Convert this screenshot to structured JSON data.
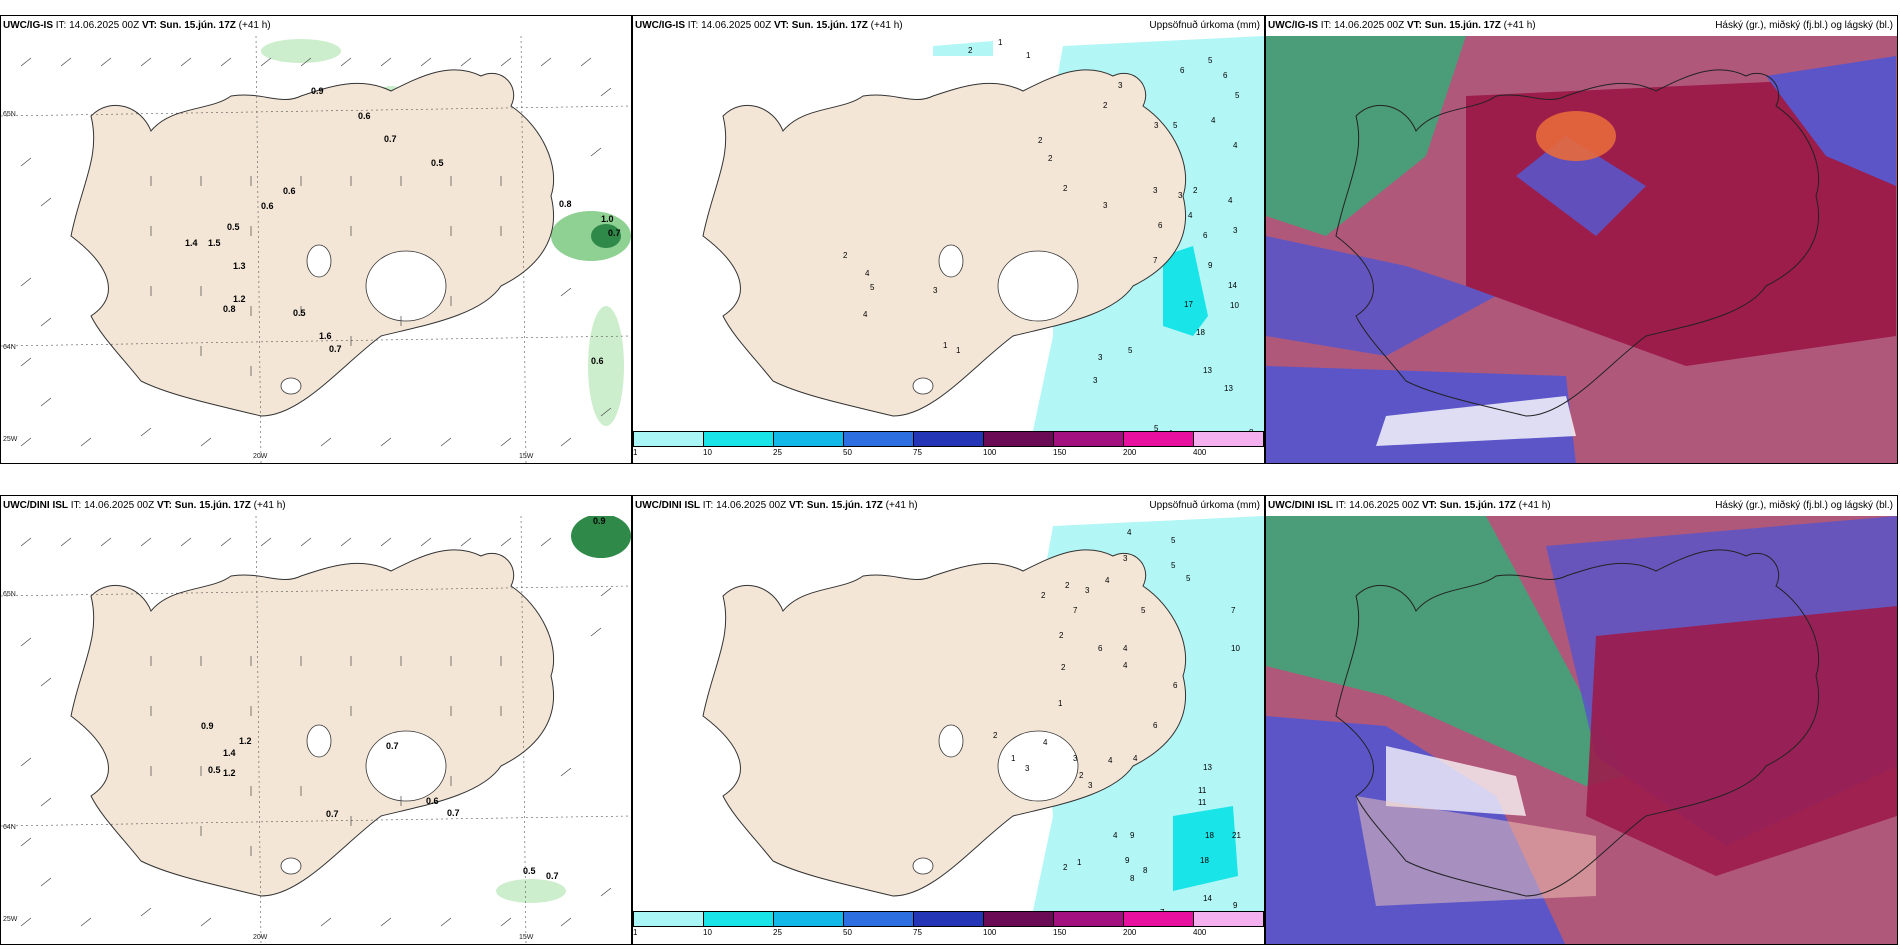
{
  "rows": [
    {
      "model": "UWC/IG-IS",
      "it_label": "IT:",
      "it_value": "14.06.2025 00Z",
      "vt_label": "VT:",
      "vt_value": "Sun. 15.jún. 17Z",
      "lead": "(+41 h)",
      "mid_title": "Uppsöfnuð úrkoma (mm)",
      "right_title": "Háský (gr.), miðský (fj.bl.) og lágský (bl.)",
      "wind_values": [
        "0.9",
        "0.6",
        "0.7",
        "0.5",
        "0.6",
        "0.6",
        "0.5",
        "1.4",
        "1.5",
        "1.3",
        "1.2",
        "0.8",
        "0.5",
        "1.6",
        "0.7",
        "0.8",
        "1.0",
        "0.7",
        "0.6"
      ],
      "precip_values": [
        "2",
        "1",
        "1",
        "3",
        "6",
        "5",
        "6",
        "2",
        "5",
        "4",
        "5",
        "4",
        "3",
        "2",
        "2",
        "2",
        "3",
        "6",
        "4",
        "3",
        "3",
        "2",
        "4",
        "3",
        "6",
        "7",
        "9",
        "14",
        "17",
        "10",
        "18",
        "13",
        "13",
        "5",
        "3",
        "3",
        "3",
        "1",
        "1",
        "2",
        "4",
        "5",
        "4",
        "8",
        "4",
        "5"
      ]
    },
    {
      "model": "UWC/DINI ISL",
      "it_label": "IT:",
      "it_value": "14.06.2025 00Z",
      "vt_label": "VT:",
      "vt_value": "Sun. 15.jún. 17Z",
      "lead": "(+41 h)",
      "mid_title": "Uppsöfnuð úrkoma (mm)",
      "right_title": "Háský (gr.), miðský (fj.bl.) og lágský (bl.)",
      "wind_values": [
        "0.9",
        "0.9",
        "1.4",
        "1.2",
        "0.5",
        "1.2",
        "0.7",
        "0.6",
        "0.7",
        "0.7",
        "0.5",
        "0.7"
      ],
      "precip_values": [
        "4",
        "5",
        "3",
        "5",
        "5",
        "4",
        "3",
        "2",
        "2",
        "7",
        "5",
        "7",
        "2",
        "6",
        "4",
        "4",
        "10",
        "6",
        "2",
        "1",
        "2",
        "3",
        "1",
        "4",
        "3",
        "2",
        "3",
        "4",
        "6",
        "4",
        "13",
        "11",
        "11",
        "18",
        "21",
        "18",
        "14",
        "9",
        "9",
        "8",
        "8",
        "4",
        "2",
        "1",
        "7",
        "9"
      ]
    }
  ],
  "lat_labels": [
    "65N",
    "64N",
    "25W",
    "20W",
    "15W"
  ],
  "colorbar": {
    "ticks": [
      "1",
      "10",
      "25",
      "50",
      "75",
      "100",
      "150",
      "200",
      "400"
    ],
    "colors": [
      "#aaf5f5",
      "#19e4e8",
      "#12b8e8",
      "#2d6fe0",
      "#2436b5",
      "#6b0b56",
      "#a3107f",
      "#e8109f",
      "#f5b0ef"
    ]
  },
  "colors": {
    "land": "#f3e6d7",
    "sea_precip": "#b3f6f6",
    "green_light": "#cdeecc",
    "green_mid": "#8fd192",
    "green_dark": "#2f8a4a",
    "cloud_high": "#3aa878",
    "cloud_mid": "#9c1c4a",
    "cloud_low": "#5b55c8"
  }
}
